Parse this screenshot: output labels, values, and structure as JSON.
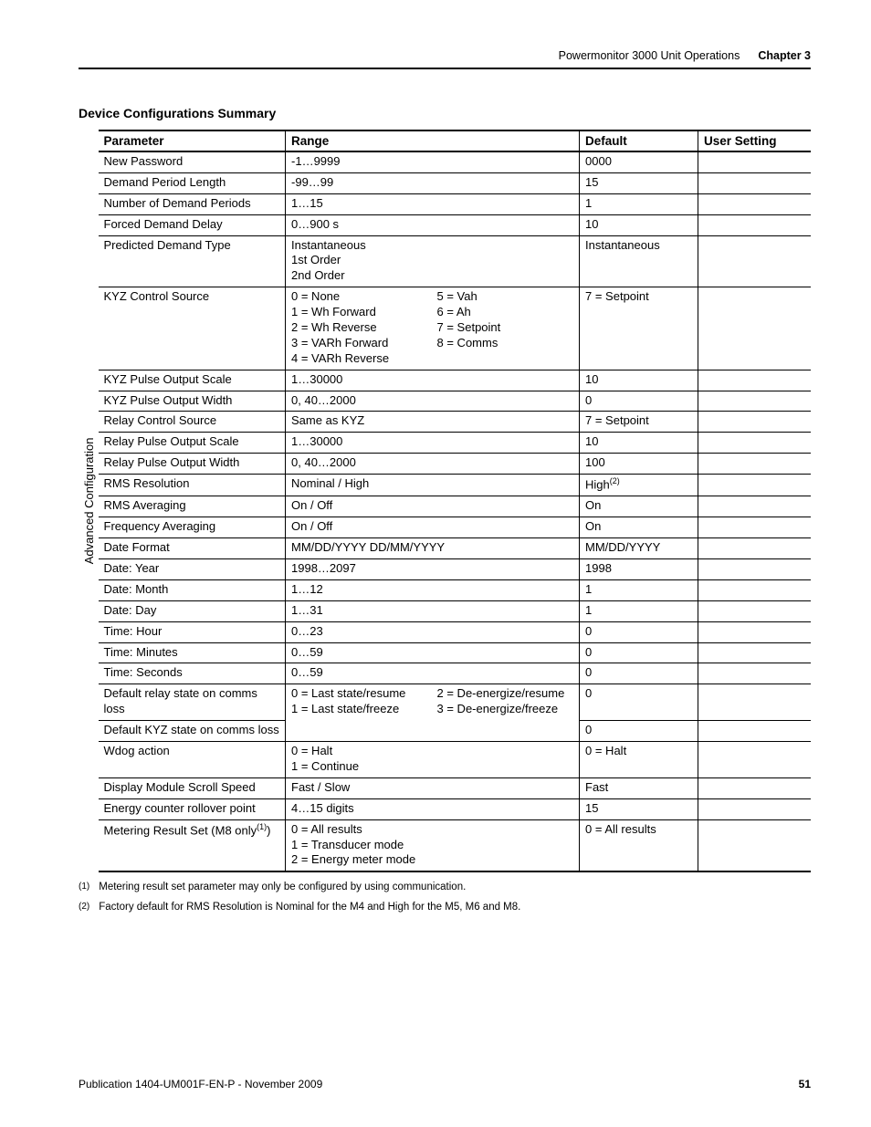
{
  "header": {
    "doc_title": "Powermonitor 3000 Unit Operations",
    "chapter": "Chapter 3"
  },
  "section_title": "Device Configurations Summary",
  "vertical_label": "Advanced Configuration",
  "table": {
    "columns": [
      "Parameter",
      "Range",
      "Default",
      "User Setting"
    ],
    "rows": [
      {
        "param": "New Password",
        "range": "-1…9999",
        "default": "0000"
      },
      {
        "param": "Demand Period Length",
        "range": "-99…99",
        "default": "15"
      },
      {
        "param": "Number of Demand Periods",
        "range": "1…15",
        "default": "1"
      },
      {
        "param": "Forced Demand Delay",
        "range": "0…900 s",
        "default": "10"
      },
      {
        "param": "Predicted Demand Type",
        "range": "Instantaneous\n1st Order\n2nd Order",
        "default": "Instantaneous"
      },
      {
        "param": "KYZ Control Source",
        "range_two_col": true,
        "range_left": "0 = None\n1 = Wh Forward\n2 = Wh Reverse\n3 = VARh Forward\n4 = VARh Reverse",
        "range_right": "5 = Vah\n6 = Ah\n7 = Setpoint\n8 = Comms",
        "default": "7 = Setpoint"
      },
      {
        "param": "KYZ Pulse Output Scale",
        "range": "1…30000",
        "default": "10"
      },
      {
        "param": "KYZ Pulse Output Width",
        "range": "0, 40…2000",
        "default": "0"
      },
      {
        "param": "Relay Control Source",
        "range": "Same as KYZ",
        "default": "7 = Setpoint"
      },
      {
        "param": "Relay Pulse Output Scale",
        "range": "1…30000",
        "default": "10"
      },
      {
        "param": "Relay Pulse Output Width",
        "range": "0, 40…2000",
        "default": "100"
      },
      {
        "param": "RMS Resolution",
        "range": "Nominal / High",
        "default_html": "High<sup>(2)</sup>"
      },
      {
        "param": "RMS Averaging",
        "range": "On / Off",
        "default": "On"
      },
      {
        "param": "Frequency Averaging",
        "range": "On / Off",
        "default": "On"
      },
      {
        "param": "Date Format",
        "range": "MM/DD/YYYY DD/MM/YYYY",
        "default": "MM/DD/YYYY"
      },
      {
        "param": "Date: Year",
        "range": "1998…2097",
        "default": "1998"
      },
      {
        "param": "Date: Month",
        "range": "1…12",
        "default": "1"
      },
      {
        "param": "Date: Day",
        "range": "1…31",
        "default": "1"
      },
      {
        "param": "Time: Hour",
        "range": "0…23",
        "default": "0"
      },
      {
        "param": "Time: Minutes",
        "range": "0…59",
        "default": "0"
      },
      {
        "param": "Time: Seconds",
        "range": "0…59",
        "default": "0"
      },
      {
        "param": "Default relay state on comms loss",
        "range_two_col": true,
        "range_rowspan": 2,
        "range_left": "0 = Last state/resume\n1 = Last state/freeze",
        "range_right": "2 = De-energize/resume\n3 = De-energize/freeze",
        "default": "0"
      },
      {
        "param": "Default KYZ state on comms loss",
        "range_shared": true,
        "default": "0"
      },
      {
        "param": "Wdog action",
        "range": "0 = Halt\n1 = Continue",
        "default": "0 = Halt"
      },
      {
        "param": "Display Module Scroll Speed",
        "range": "Fast / Slow",
        "default": "Fast"
      },
      {
        "param": "Energy counter rollover point",
        "range": "4…15 digits",
        "default": "15"
      },
      {
        "param_html": "Metering Result Set (M8 only<sup>(1)</sup>)",
        "range": "0 = All results\n1 = Transducer mode\n2 = Energy meter mode",
        "default": "0 = All results"
      }
    ]
  },
  "footnotes": [
    {
      "num": "(1)",
      "text": "Metering result set parameter may only be configured by using communication."
    },
    {
      "num": "(2)",
      "text": "Factory default for RMS Resolution is Nominal for the M4 and High for the M5, M6 and M8."
    }
  ],
  "footer": {
    "pub": "Publication 1404-UM001F-EN-P - November 2009",
    "page": "51"
  }
}
